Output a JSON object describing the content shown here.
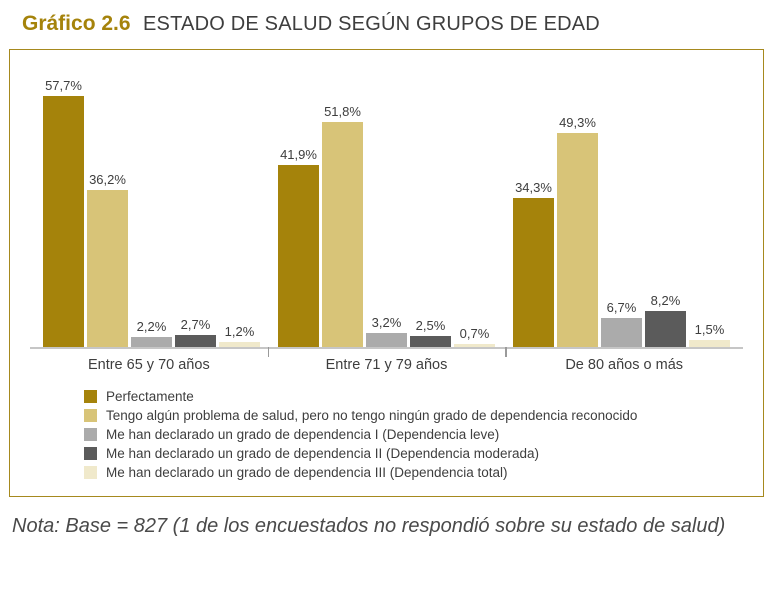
{
  "title": {
    "prefix": "Gráfico 2.6",
    "text": "ESTADO DE SALUD SEGÚN GRUPOS DE EDAD"
  },
  "chart_data": {
    "type": "bar",
    "title": "Gráfico 2.6 ESTADO DE SALUD SEGÚN GRUPOS DE EDAD",
    "categories": [
      "Entre 65 y 70 años",
      "Entre 71 y 79 años",
      "De 80 años o más"
    ],
    "series": [
      {
        "name": "Perfectamente",
        "color": "#a5830b",
        "values": [
          57.7,
          41.9,
          34.3
        ],
        "labels": [
          "57,7%",
          "41,9%",
          "34,3%"
        ]
      },
      {
        "name": "Tengo algún problema de salud, pero no tengo ningún grado de dependencia reconocido",
        "color": "#d8c478",
        "values": [
          36.2,
          51.8,
          49.3
        ],
        "labels": [
          "36,2%",
          "51,8%",
          "49,3%"
        ]
      },
      {
        "name": "Me han declarado un grado de dependencia I (Dependencia leve)",
        "color": "#ababab",
        "values": [
          2.2,
          3.2,
          6.7
        ],
        "labels": [
          "2,2%",
          "3,2%",
          "6,7%"
        ]
      },
      {
        "name": "Me han declarado un grado de dependencia II (Dependencia moderada)",
        "color": "#5b5b5b",
        "values": [
          2.7,
          2.5,
          8.2
        ],
        "labels": [
          "2,7%",
          "2,5%",
          "8,2%"
        ]
      },
      {
        "name": "Me han declarado un grado de dependencia III (Dependencia total)",
        "color": "#f0e9cb",
        "values": [
          1.2,
          0.7,
          1.5
        ],
        "labels": [
          "1,2%",
          "0,7%",
          "1,5%"
        ]
      }
    ],
    "ylim": [
      0,
      60
    ],
    "grid": false,
    "legend_position": "bottom",
    "value_labels": true
  },
  "note": "Nota: Base = 827 (1 de los encuestados no respondió sobre su estado de salud)"
}
